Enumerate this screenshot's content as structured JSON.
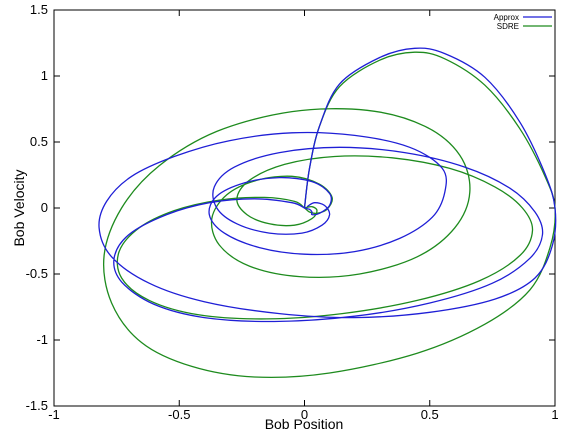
{
  "chart_data": {
    "type": "line",
    "title": "",
    "xlabel": "Bob Position",
    "ylabel": "Bob Velocity",
    "xlim": [
      -1,
      1
    ],
    "ylim": [
      -1.5,
      1.5
    ],
    "x_ticks": [
      {
        "value": -1,
        "label": "-1"
      },
      {
        "value": -0.5,
        "label": "-0.5"
      },
      {
        "value": 0,
        "label": "0"
      },
      {
        "value": 0.5,
        "label": "0.5"
      },
      {
        "value": 1,
        "label": "1"
      }
    ],
    "y_ticks": [
      {
        "value": -1.5,
        "label": "-1.5"
      },
      {
        "value": -1,
        "label": "-1"
      },
      {
        "value": -0.5,
        "label": "-0.5"
      },
      {
        "value": 0,
        "label": "0"
      },
      {
        "value": 0.5,
        "label": "0.5"
      },
      {
        "value": 1,
        "label": "1"
      },
      {
        "value": 1.5,
        "label": "1.5"
      }
    ],
    "legend_position": "top-right",
    "grid": false,
    "series": [
      {
        "name": "Approx",
        "color": "#1f1fd6",
        "points": [
          [
            0,
            0
          ],
          [
            0.02,
            0.3
          ],
          [
            0.06,
            0.62
          ],
          [
            0.14,
            0.94
          ],
          [
            0.3,
            1.14
          ],
          [
            0.44,
            1.21
          ],
          [
            0.56,
            1.17
          ],
          [
            0.72,
            0.99
          ],
          [
            0.86,
            0.65
          ],
          [
            0.96,
            0.26
          ],
          [
            1.0,
            0.0
          ],
          [
            0.99,
            -0.28
          ],
          [
            0.92,
            -0.53
          ],
          [
            0.76,
            -0.69
          ],
          [
            0.5,
            -0.79
          ],
          [
            0.2,
            -0.83
          ],
          [
            -0.1,
            -0.8
          ],
          [
            -0.4,
            -0.71
          ],
          [
            -0.62,
            -0.57
          ],
          [
            -0.77,
            -0.37
          ],
          [
            -0.82,
            -0.15
          ],
          [
            -0.79,
            0.05
          ],
          [
            -0.69,
            0.24
          ],
          [
            -0.52,
            0.39
          ],
          [
            -0.3,
            0.51
          ],
          [
            -0.05,
            0.57
          ],
          [
            0.2,
            0.55
          ],
          [
            0.42,
            0.46
          ],
          [
            0.55,
            0.3
          ],
          [
            0.56,
            0.12
          ],
          [
            0.51,
            -0.07
          ],
          [
            0.38,
            -0.23
          ],
          [
            0.2,
            -0.33
          ],
          [
            0.0,
            -0.35
          ],
          [
            -0.18,
            -0.3
          ],
          [
            -0.32,
            -0.19
          ],
          [
            -0.38,
            -0.05
          ],
          [
            -0.35,
            0.09
          ],
          [
            -0.24,
            0.19
          ],
          [
            -0.1,
            0.23
          ],
          [
            0.03,
            0.2
          ],
          [
            0.1,
            0.11
          ],
          [
            0.1,
            0.02
          ],
          [
            0.06,
            -0.04
          ],
          [
            0.03,
            -0.05
          ],
          [
            0.03,
            -0.03
          ],
          [
            0.02,
            -0.01
          ],
          [
            0.0,
            0.0
          ],
          [
            -0.05,
            0.04
          ],
          [
            -0.2,
            0.07
          ],
          [
            -0.38,
            0.04
          ],
          [
            -0.55,
            -0.05
          ],
          [
            -0.7,
            -0.2
          ],
          [
            -0.76,
            -0.38
          ],
          [
            -0.73,
            -0.56
          ],
          [
            -0.6,
            -0.73
          ],
          [
            -0.4,
            -0.83
          ],
          [
            -0.12,
            -0.86
          ],
          [
            0.2,
            -0.82
          ],
          [
            0.5,
            -0.72
          ],
          [
            0.75,
            -0.57
          ],
          [
            0.9,
            -0.38
          ],
          [
            0.95,
            -0.2
          ],
          [
            0.92,
            -0.03
          ],
          [
            0.82,
            0.15
          ],
          [
            0.64,
            0.31
          ],
          [
            0.4,
            0.42
          ],
          [
            0.14,
            0.46
          ],
          [
            -0.1,
            0.42
          ],
          [
            -0.28,
            0.31
          ],
          [
            -0.36,
            0.16
          ],
          [
            -0.35,
            0.0
          ],
          [
            -0.27,
            -0.12
          ],
          [
            -0.14,
            -0.19
          ],
          [
            -0.01,
            -0.19
          ],
          [
            0.07,
            -0.13
          ],
          [
            0.1,
            -0.05
          ],
          [
            0.08,
            0.02
          ],
          [
            0.04,
            0.04
          ],
          [
            0.01,
            0.01
          ]
        ]
      },
      {
        "name": "SDRE",
        "color": "#1e8b1e",
        "points": [
          [
            0,
            0
          ],
          [
            0.02,
            0.3
          ],
          [
            0.06,
            0.62
          ],
          [
            0.14,
            0.92
          ],
          [
            0.3,
            1.12
          ],
          [
            0.44,
            1.18
          ],
          [
            0.56,
            1.13
          ],
          [
            0.72,
            0.93
          ],
          [
            0.86,
            0.6
          ],
          [
            0.96,
            0.24
          ],
          [
            1.0,
            0.0
          ],
          [
            0.98,
            -0.3
          ],
          [
            0.9,
            -0.62
          ],
          [
            0.72,
            -0.88
          ],
          [
            0.45,
            -1.1
          ],
          [
            0.1,
            -1.25
          ],
          [
            -0.2,
            -1.28
          ],
          [
            -0.45,
            -1.2
          ],
          [
            -0.65,
            -1.02
          ],
          [
            -0.77,
            -0.72
          ],
          [
            -0.8,
            -0.36
          ],
          [
            -0.73,
            0.0
          ],
          [
            -0.58,
            0.32
          ],
          [
            -0.35,
            0.58
          ],
          [
            -0.05,
            0.73
          ],
          [
            0.25,
            0.74
          ],
          [
            0.48,
            0.62
          ],
          [
            0.62,
            0.4
          ],
          [
            0.66,
            0.12
          ],
          [
            0.6,
            -0.15
          ],
          [
            0.45,
            -0.37
          ],
          [
            0.22,
            -0.5
          ],
          [
            -0.02,
            -0.52
          ],
          [
            -0.22,
            -0.44
          ],
          [
            -0.34,
            -0.28
          ],
          [
            -0.37,
            -0.08
          ],
          [
            -0.31,
            0.1
          ],
          [
            -0.19,
            0.21
          ],
          [
            -0.05,
            0.24
          ],
          [
            0.06,
            0.18
          ],
          [
            0.11,
            0.08
          ],
          [
            0.09,
            -0.01
          ],
          [
            0.05,
            -0.04
          ],
          [
            0.02,
            -0.03
          ],
          [
            0.0,
            0.0
          ],
          [
            -0.04,
            0.05
          ],
          [
            -0.16,
            0.08
          ],
          [
            -0.34,
            0.06
          ],
          [
            -0.52,
            -0.02
          ],
          [
            -0.66,
            -0.15
          ],
          [
            -0.74,
            -0.33
          ],
          [
            -0.73,
            -0.53
          ],
          [
            -0.62,
            -0.7
          ],
          [
            -0.42,
            -0.81
          ],
          [
            -0.15,
            -0.84
          ],
          [
            0.15,
            -0.8
          ],
          [
            0.45,
            -0.7
          ],
          [
            0.7,
            -0.55
          ],
          [
            0.86,
            -0.36
          ],
          [
            0.91,
            -0.17
          ],
          [
            0.87,
            0.0
          ],
          [
            0.76,
            0.16
          ],
          [
            0.58,
            0.3
          ],
          [
            0.35,
            0.38
          ],
          [
            0.12,
            0.39
          ],
          [
            -0.08,
            0.33
          ],
          [
            -0.22,
            0.21
          ],
          [
            -0.27,
            0.07
          ],
          [
            -0.23,
            -0.05
          ],
          [
            -0.14,
            -0.12
          ],
          [
            -0.04,
            -0.13
          ],
          [
            0.03,
            -0.08
          ],
          [
            0.05,
            -0.02
          ],
          [
            0.03,
            0.01
          ],
          [
            0.0,
            0.0
          ]
        ]
      }
    ]
  }
}
